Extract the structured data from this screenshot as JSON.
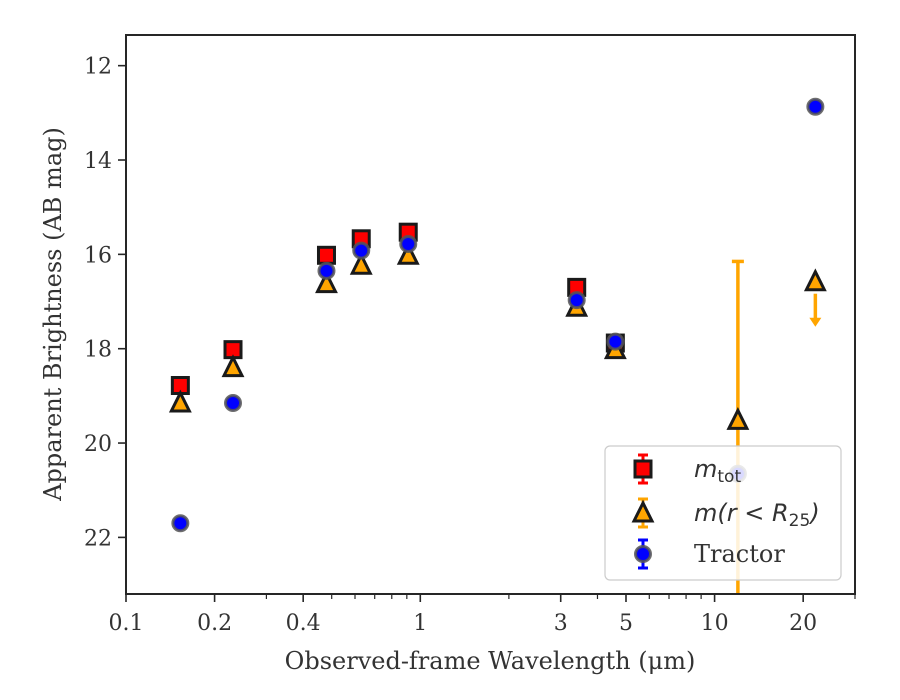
{
  "chart_data": {
    "type": "scatter",
    "xlabel": "Observed-frame Wavelength (μm)",
    "ylabel": "Apparent Brightness (AB mag)",
    "x_scale": "log",
    "y_inverted": true,
    "xlim": [
      0.1,
      30
    ],
    "ylim": [
      23.2,
      11.35
    ],
    "x_ticks": [
      {
        "value": 0.1,
        "label": "0.1"
      },
      {
        "value": 0.2,
        "label": "0.2"
      },
      {
        "value": 0.4,
        "label": "0.4"
      },
      {
        "value": 1,
        "label": "1"
      },
      {
        "value": 3,
        "label": "3"
      },
      {
        "value": 5,
        "label": "5"
      },
      {
        "value": 10,
        "label": "10"
      },
      {
        "value": 20,
        "label": "20"
      }
    ],
    "y_ticks": [
      {
        "value": 12,
        "label": "12"
      },
      {
        "value": 14,
        "label": "14"
      },
      {
        "value": 16,
        "label": "16"
      },
      {
        "value": 18,
        "label": "18"
      },
      {
        "value": 20,
        "label": "20"
      },
      {
        "value": 22,
        "label": "22"
      }
    ],
    "grid": false,
    "legend_position": "lower-right",
    "series": [
      {
        "key": "mtot",
        "name_main": "m",
        "name_sub": "tot",
        "marker": "square",
        "color": "#ff0000",
        "edge": "#1a1a1a",
        "points": [
          {
            "x": 0.153,
            "y": 18.78
          },
          {
            "x": 0.231,
            "y": 18.02
          },
          {
            "x": 0.48,
            "y": 16.02
          },
          {
            "x": 0.63,
            "y": 15.67
          },
          {
            "x": 0.91,
            "y": 15.53
          },
          {
            "x": 3.4,
            "y": 16.7
          },
          {
            "x": 4.6,
            "y": 17.88
          }
        ]
      },
      {
        "key": "mr25",
        "name_main": "m",
        "name_rest": "(r < R",
        "name_sub": "25",
        "name_end": ")",
        "marker": "triangle",
        "color": "#ffa500",
        "edge": "#1a1a1a",
        "points": [
          {
            "x": 0.153,
            "y": 19.15
          },
          {
            "x": 0.231,
            "y": 18.4
          },
          {
            "x": 0.48,
            "y": 16.62
          },
          {
            "x": 0.63,
            "y": 16.23
          },
          {
            "x": 0.91,
            "y": 16.02
          },
          {
            "x": 3.4,
            "y": 17.12
          },
          {
            "x": 4.6,
            "y": 18.02
          },
          {
            "x": 12.0,
            "y": 19.52,
            "yerr_low": 16.15,
            "yerr_high": 23.2
          },
          {
            "x": 22.0,
            "y": 16.58,
            "upper_limit": true
          }
        ]
      },
      {
        "key": "tractor",
        "name_main": "Tractor",
        "marker": "circle",
        "color": "#0000ff",
        "edge": "#555555",
        "points": [
          {
            "x": 0.153,
            "y": 21.7
          },
          {
            "x": 0.231,
            "y": 19.15
          },
          {
            "x": 0.48,
            "y": 16.35
          },
          {
            "x": 0.63,
            "y": 15.92
          },
          {
            "x": 0.91,
            "y": 15.78
          },
          {
            "x": 3.4,
            "y": 16.97
          },
          {
            "x": 4.6,
            "y": 17.85
          },
          {
            "x": 12.0,
            "y": 20.65
          },
          {
            "x": 22.0,
            "y": 12.87
          }
        ]
      }
    ]
  }
}
